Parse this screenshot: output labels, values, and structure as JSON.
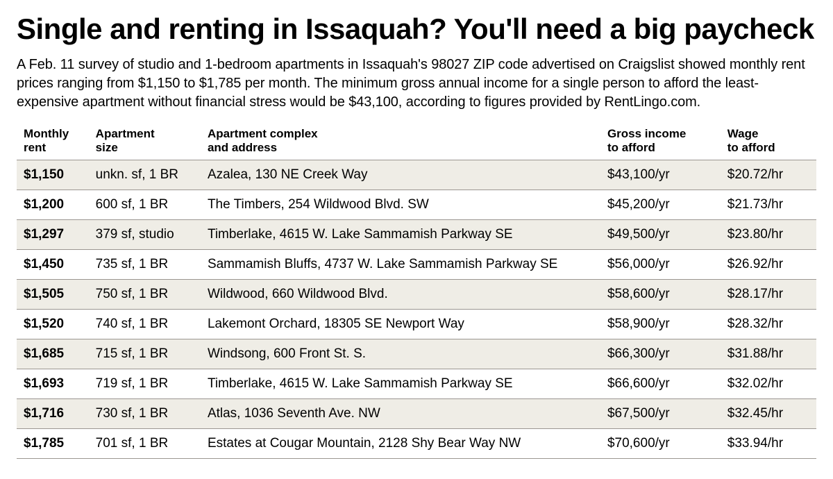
{
  "headline": "Single and renting in Issaquah? You'll need a big paycheck",
  "lede": "A Feb. 11 survey of studio and 1-bedroom apartments in Issaquah's 98027 ZIP code advertised on Craigslist showed monthly rent prices ranging from $1,150 to $1,785 per month. The minimum gross annual income for a single person to afford the least-expensive apartment without financial stress would be $43,100, according to figures provided by RentLingo.com.",
  "columns": {
    "rent": "Monthly\nrent",
    "size": "Apartment\nsize",
    "addr": "Apartment complex\nand address",
    "income": "Gross income\nto afford",
    "wage": "Wage\nto afford"
  },
  "rows": [
    {
      "rent": "$1,150",
      "size": "unkn. sf, 1 BR",
      "addr": "Azalea, 130 NE Creek Way",
      "income": "$43,100/yr",
      "wage": "$20.72/hr"
    },
    {
      "rent": "$1,200",
      "size": "600 sf, 1 BR",
      "addr": "The Timbers, 254 Wildwood Blvd. SW",
      "income": "$45,200/yr",
      "wage": "$21.73/hr"
    },
    {
      "rent": "$1,297",
      "size": "379 sf, studio",
      "addr": "Timberlake, 4615 W. Lake Sammamish Parkway SE",
      "income": "$49,500/yr",
      "wage": "$23.80/hr"
    },
    {
      "rent": "$1,450",
      "size": "735 sf, 1 BR",
      "addr": "Sammamish Bluffs, 4737 W. Lake Sammamish Parkway SE",
      "income": "$56,000/yr",
      "wage": "$26.92/hr"
    },
    {
      "rent": "$1,505",
      "size": "750 sf, 1 BR",
      "addr": "Wildwood, 660 Wildwood Blvd.",
      "income": "$58,600/yr",
      "wage": "$28.17/hr"
    },
    {
      "rent": "$1,520",
      "size": "740 sf, 1 BR",
      "addr": "Lakemont Orchard, 18305 SE Newport Way",
      "income": "$58,900/yr",
      "wage": "$28.32/hr"
    },
    {
      "rent": "$1,685",
      "size": "715 sf, 1 BR",
      "addr": "Windsong, 600 Front St. S.",
      "income": "$66,300/yr",
      "wage": "$31.88/hr"
    },
    {
      "rent": "$1,693",
      "size": "719 sf, 1 BR",
      "addr": "Timberlake, 4615 W. Lake Sammamish Parkway SE",
      "income": "$66,600/yr",
      "wage": "$32.02/hr"
    },
    {
      "rent": "$1,716",
      "size": "730 sf, 1 BR",
      "addr": "Atlas, 1036 Seventh Ave. NW",
      "income": "$67,500/yr",
      "wage": "$32.45/hr"
    },
    {
      "rent": "$1,785",
      "size": "701 sf, 1 BR",
      "addr": "Estates at Cougar Mountain, 2128 Shy Bear Way NW",
      "income": "$70,600/yr",
      "wage": "$33.94/hr"
    }
  ],
  "style": {
    "stripe_odd": "#efede6",
    "stripe_even": "#ffffff",
    "rule_color": "#9b9691",
    "text_color": "#000000",
    "headline_fontsize": 42,
    "lede_fontsize": 20,
    "header_fontsize": 17,
    "cell_fontsize": 19
  }
}
